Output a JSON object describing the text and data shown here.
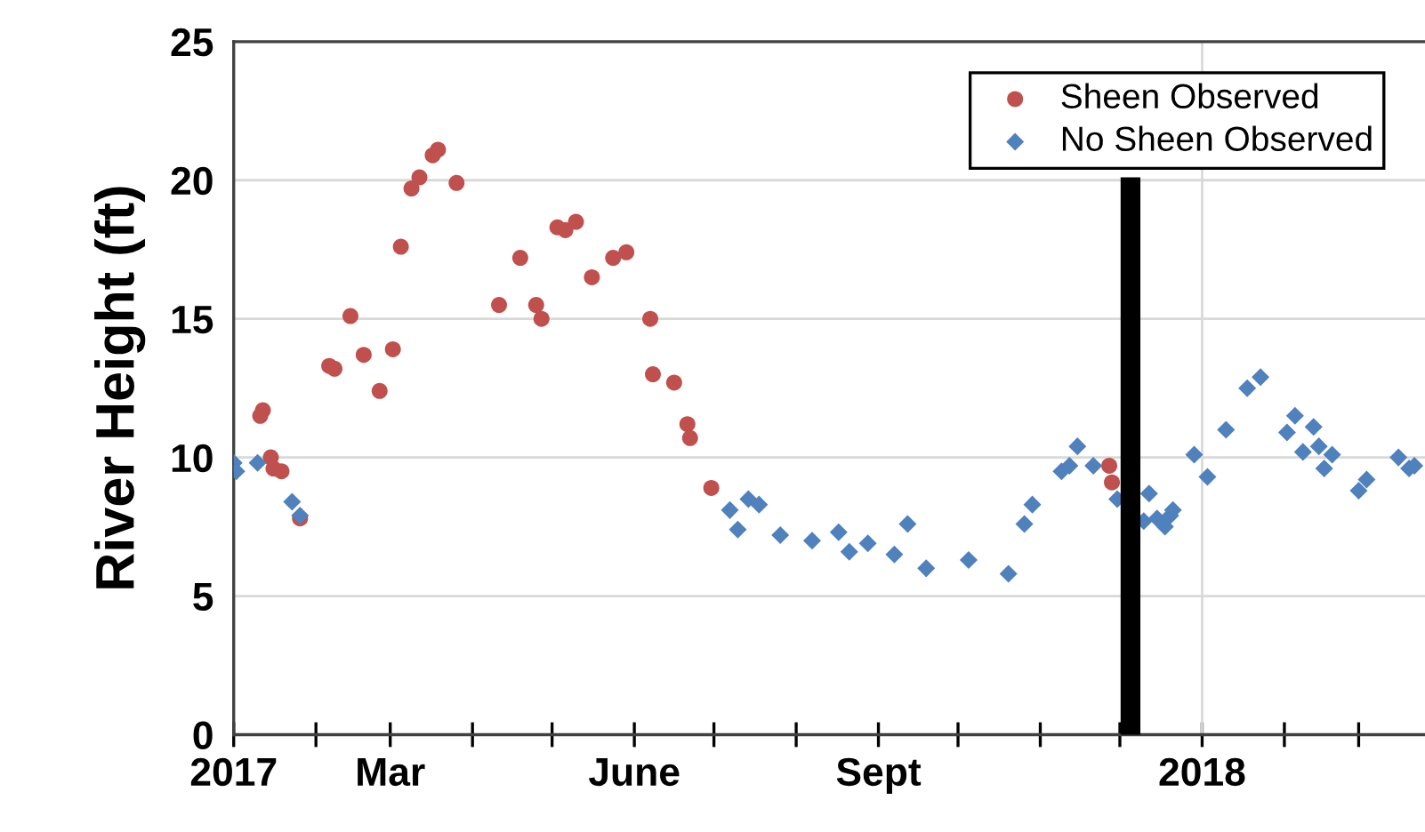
{
  "chart_data": {
    "type": "scatter",
    "ylabel": "River Height (ft)",
    "xlim": [
      "2017-01-01",
      "2018-03-26"
    ],
    "ylim": [
      0,
      25
    ],
    "yticks": [
      0,
      5,
      10,
      15,
      20,
      25
    ],
    "xticks": [
      {
        "value": "2017-01-01",
        "label": "2017"
      },
      {
        "value": "2017-02-01",
        "label": null
      },
      {
        "value": "2017-03-01",
        "label": "Mar"
      },
      {
        "value": "2017-04-01",
        "label": null
      },
      {
        "value": "2017-05-01",
        "label": null
      },
      {
        "value": "2017-06-01",
        "label": "June"
      },
      {
        "value": "2017-07-01",
        "label": null
      },
      {
        "value": "2017-08-01",
        "label": null
      },
      {
        "value": "2017-09-01",
        "label": "Sept"
      },
      {
        "value": "2017-10-01",
        "label": null
      },
      {
        "value": "2017-11-01",
        "label": null
      },
      {
        "value": "2017-12-01",
        "label": null
      },
      {
        "value": "2018-01-01",
        "label": "2018"
      },
      {
        "value": "2018-02-01",
        "label": null
      },
      {
        "value": "2018-03-01",
        "label": null
      }
    ],
    "grid": "y",
    "legend": "top right",
    "ref_lines": [
      {
        "axis": "x",
        "value": "2018-01-01",
        "label": null,
        "color": "#d9d9d9"
      },
      {
        "axis": "x",
        "value": "2017-12-05",
        "label": null,
        "color": "#000000"
      }
    ],
    "series": [
      {
        "name": "Sheen Observed",
        "color": "#c0504d",
        "marker": "circle",
        "x": [
          "2017-01-11",
          "2017-01-12",
          "2017-01-15",
          "2017-01-16",
          "2017-01-19",
          "2017-01-26",
          "2017-02-06",
          "2017-02-08",
          "2017-02-14",
          "2017-02-19",
          "2017-02-25",
          "2017-03-02",
          "2017-03-05",
          "2017-03-09",
          "2017-03-12",
          "2017-03-17",
          "2017-03-19",
          "2017-03-26",
          "2017-04-11",
          "2017-04-19",
          "2017-04-25",
          "2017-04-27",
          "2017-05-03",
          "2017-05-06",
          "2017-05-10",
          "2017-05-16",
          "2017-05-24",
          "2017-05-29",
          "2017-06-07",
          "2017-06-08",
          "2017-06-16",
          "2017-06-21",
          "2017-06-22",
          "2017-06-30",
          "2017-11-27",
          "2017-11-28"
        ],
        "values": [
          11.5,
          11.7,
          10.0,
          9.6,
          9.5,
          7.8,
          13.3,
          13.2,
          15.1,
          13.7,
          12.4,
          13.9,
          17.6,
          19.7,
          20.1,
          20.9,
          21.1,
          19.9,
          15.5,
          17.2,
          15.5,
          15.0,
          18.3,
          18.2,
          18.5,
          16.5,
          17.2,
          17.4,
          15.0,
          13.0,
          12.7,
          11.2,
          10.7,
          8.9,
          9.7,
          9.1
        ]
      },
      {
        "name": "No Sheen Observed",
        "color": "#4f81bd",
        "marker": "diamond",
        "x": [
          "2017-01-01",
          "2017-01-02",
          "2017-01-10",
          "2017-01-23",
          "2017-01-26",
          "2017-07-07",
          "2017-07-10",
          "2017-07-14",
          "2017-07-18",
          "2017-07-26",
          "2017-08-07",
          "2017-08-17",
          "2017-08-21",
          "2017-08-28",
          "2017-09-07",
          "2017-09-12",
          "2017-09-19",
          "2017-10-05",
          "2017-10-20",
          "2017-10-26",
          "2017-10-29",
          "2017-11-09",
          "2017-11-12",
          "2017-11-15",
          "2017-11-21",
          "2017-11-30",
          "2017-12-10",
          "2017-12-12",
          "2017-12-15",
          "2017-12-18",
          "2017-12-20",
          "2017-12-21",
          "2017-12-29",
          "2018-01-03",
          "2018-01-10",
          "2018-01-18",
          "2018-01-23",
          "2018-02-02",
          "2018-02-05",
          "2018-02-08",
          "2018-02-12",
          "2018-02-14",
          "2018-02-16",
          "2018-02-19",
          "2018-03-01",
          "2018-03-04",
          "2018-03-16",
          "2018-03-20",
          "2018-03-22"
        ],
        "values": [
          9.8,
          9.5,
          9.8,
          8.4,
          7.9,
          8.1,
          7.4,
          8.5,
          8.3,
          7.2,
          7.0,
          7.3,
          6.6,
          6.9,
          6.5,
          7.6,
          6.0,
          6.3,
          5.8,
          7.6,
          8.3,
          9.5,
          9.7,
          10.4,
          9.7,
          8.5,
          7.7,
          8.7,
          7.8,
          7.5,
          7.9,
          8.1,
          10.1,
          9.3,
          11.0,
          12.5,
          12.9,
          10.9,
          11.5,
          10.2,
          11.1,
          10.4,
          9.6,
          10.1,
          8.8,
          9.2,
          10.0,
          9.6,
          9.7
        ]
      }
    ]
  }
}
